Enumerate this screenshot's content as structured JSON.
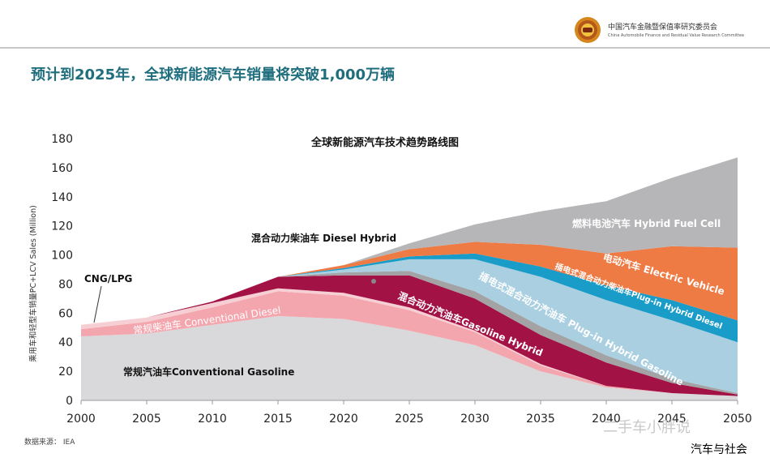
{
  "header": {
    "org_name": "中国汽车金融暨保值率研究委员会",
    "org_name_en": "China Automobile Finance and Residual Value Research Committee"
  },
  "page_title": "预计到2025年，全球新能源汽车销量将突破1,000万辆",
  "footer": {
    "source": "数据来源：  IEA",
    "watermark": "二手车小胖说",
    "badge": "汽车与社会"
  },
  "colors": {
    "conventional_gasoline": "#d9d8da",
    "conventional_diesel": "#f4a6ae",
    "cng_lpg": "#f5cfd3",
    "gasoline_hybrid": "#a31245",
    "diesel_hybrid": "#a3a3a5",
    "plugin_hybrid_gasoline": "#a9cfe0",
    "plugin_hybrid_diesel": "#1a9cc9",
    "electric_vehicle": "#ee7a44",
    "hybrid_fuel_cell": "#b6b6b8"
  },
  "chart_data": {
    "type": "area",
    "stacked": true,
    "title": "全球新能源汽车技术趋势路线图",
    "ylabel": "乘用车和轻型车销量PC+LCV Sales (Million)",
    "xlabel": "",
    "xlim": [
      2000,
      2050
    ],
    "ylim": [
      0,
      180
    ],
    "x_ticks": [
      "2000",
      "2005",
      "2010",
      "2015",
      "2020",
      "2025",
      "2030",
      "2035",
      "2040",
      "2045",
      "2050"
    ],
    "y_ticks": [
      "0",
      "20",
      "40",
      "60",
      "80",
      "100",
      "120",
      "140",
      "160",
      "180"
    ],
    "x": [
      2000,
      2005,
      2010,
      2015,
      2020,
      2025,
      2030,
      2035,
      2040,
      2045,
      2050
    ],
    "series": [
      {
        "name": "常规汽油车Conventional Gasoline",
        "key": "conventional_gasoline",
        "values": [
          44,
          46,
          52,
          58,
          56,
          48,
          38,
          20,
          9,
          5,
          3
        ]
      },
      {
        "name": "常规柴油车 Conventional Diesel",
        "key": "conventional_diesel",
        "values": [
          5,
          8,
          12,
          17,
          16,
          14,
          9,
          4,
          1,
          0,
          0
        ]
      },
      {
        "name": "CNG/LPG",
        "key": "cng_lpg",
        "values": [
          3,
          3,
          3,
          2,
          2,
          2,
          1,
          1,
          0,
          0,
          0
        ]
      },
      {
        "name": "混合动力汽油车Gasoline Hybrid",
        "key": "gasoline_hybrid",
        "values": [
          0,
          0,
          1,
          8,
          12,
          22,
          22,
          20,
          16,
          7,
          1
        ]
      },
      {
        "name": "混合动力柴油车 Diesel Hybrid",
        "key": "diesel_hybrid",
        "values": [
          0,
          0,
          0,
          0,
          2,
          3,
          5,
          6,
          5,
          3,
          1
        ]
      },
      {
        "name": "插电式混合动力汽油车 Plug-in Hybrid Gasoline",
        "key": "plugin_hybrid_gasoline",
        "values": [
          0,
          0,
          0,
          0,
          2,
          8,
          22,
          34,
          38,
          40,
          35
        ]
      },
      {
        "name": "插电式混合动力柴油车Plug-in Hybrid Diesel",
        "key": "plugin_hybrid_diesel",
        "values": [
          0,
          0,
          0,
          0,
          1,
          2,
          4,
          7,
          10,
          14,
          15
        ]
      },
      {
        "name": "电动汽车 Electric Vehicle",
        "key": "electric_vehicle",
        "values": [
          0,
          0,
          0,
          0,
          2,
          5,
          8,
          15,
          22,
          37,
          50
        ]
      },
      {
        "name": "燃料电池汽车 Hybrid Fuel Cell",
        "key": "hybrid_fuel_cell",
        "values": [
          0,
          0,
          0,
          0,
          0,
          4,
          12,
          23,
          36,
          47,
          62
        ]
      }
    ]
  }
}
